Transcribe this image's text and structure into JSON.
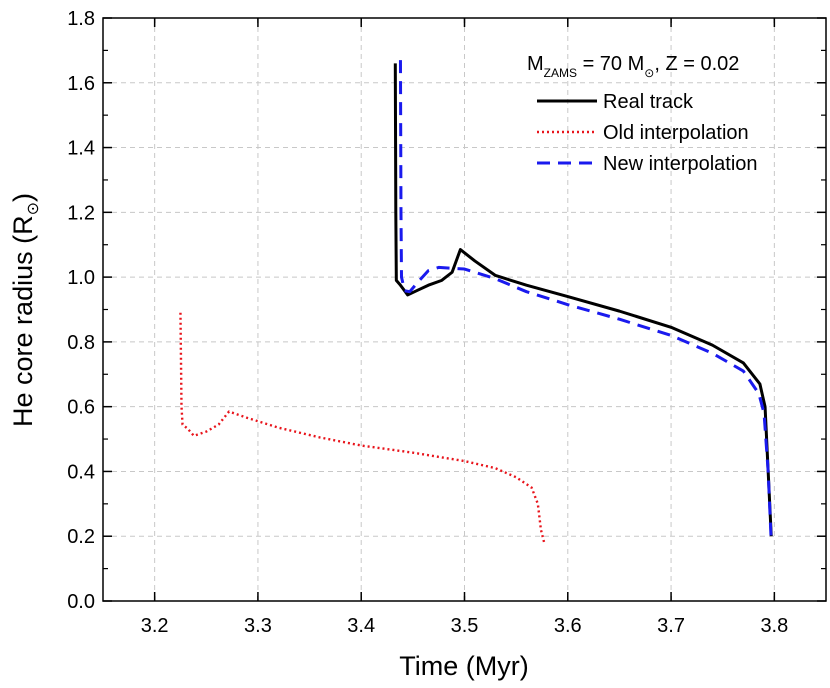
{
  "chart_data": {
    "type": "line",
    "xlabel": "Time (Myr)",
    "ylabel_main": "He core radius (R",
    "ylabel_sym": "⊙",
    "ylabel_close": ")",
    "xlim": [
      3.15,
      3.85
    ],
    "ylim": [
      0.0,
      1.8
    ],
    "x_ticks": [
      "3.2",
      "3.3",
      "3.4",
      "3.5",
      "3.6",
      "3.7",
      "3.8"
    ],
    "y_ticks": [
      "0.0",
      "0.2",
      "0.4",
      "0.6",
      "0.8",
      "1.0",
      "1.2",
      "1.4",
      "1.6",
      "1.8"
    ],
    "grid": true,
    "legend_position": "top-right",
    "legend_header": {
      "m": "M",
      "m_sub": "ZAMS",
      "eq": " = 70 M",
      "sun": "⊙",
      "rest": ", Z = 0.02"
    },
    "series": [
      {
        "name": "Real track",
        "color": "#000000",
        "style": "solid",
        "points": [
          [
            3.433,
            1.66
          ],
          [
            3.4335,
            1.2
          ],
          [
            3.434,
            0.99
          ],
          [
            3.438,
            0.975
          ],
          [
            3.441,
            0.962
          ],
          [
            3.445,
            0.945
          ],
          [
            3.455,
            0.96
          ],
          [
            3.465,
            0.975
          ],
          [
            3.478,
            0.99
          ],
          [
            3.488,
            1.015
          ],
          [
            3.496,
            1.085
          ],
          [
            3.51,
            1.05
          ],
          [
            3.53,
            1.005
          ],
          [
            3.56,
            0.975
          ],
          [
            3.6,
            0.94
          ],
          [
            3.65,
            0.895
          ],
          [
            3.7,
            0.845
          ],
          [
            3.74,
            0.79
          ],
          [
            3.77,
            0.735
          ],
          [
            3.786,
            0.67
          ],
          [
            3.791,
            0.6
          ],
          [
            3.794,
            0.4
          ],
          [
            3.797,
            0.2
          ]
        ]
      },
      {
        "name": "Old interpolation",
        "color": "#e8141b",
        "style": "dotted",
        "points": [
          [
            3.225,
            0.89
          ],
          [
            3.226,
            0.6
          ],
          [
            3.227,
            0.545
          ],
          [
            3.232,
            0.532
          ],
          [
            3.238,
            0.51
          ],
          [
            3.25,
            0.523
          ],
          [
            3.262,
            0.545
          ],
          [
            3.272,
            0.585
          ],
          [
            3.29,
            0.565
          ],
          [
            3.32,
            0.535
          ],
          [
            3.36,
            0.505
          ],
          [
            3.4,
            0.48
          ],
          [
            3.45,
            0.458
          ],
          [
            3.5,
            0.432
          ],
          [
            3.53,
            0.41
          ],
          [
            3.55,
            0.382
          ],
          [
            3.565,
            0.35
          ],
          [
            3.571,
            0.3
          ],
          [
            3.574,
            0.22
          ],
          [
            3.577,
            0.182
          ]
        ]
      },
      {
        "name": "New interpolation",
        "color": "#1a1aee",
        "style": "dashed",
        "points": [
          [
            3.438,
            1.67
          ],
          [
            3.4385,
            1.2
          ],
          [
            3.439,
            1.0
          ],
          [
            3.442,
            0.958
          ],
          [
            3.447,
            0.955
          ],
          [
            3.455,
            0.985
          ],
          [
            3.465,
            1.02
          ],
          [
            3.475,
            1.03
          ],
          [
            3.5,
            1.025
          ],
          [
            3.53,
            0.995
          ],
          [
            3.56,
            0.955
          ],
          [
            3.6,
            0.915
          ],
          [
            3.65,
            0.87
          ],
          [
            3.7,
            0.82
          ],
          [
            3.74,
            0.765
          ],
          [
            3.77,
            0.71
          ],
          [
            3.785,
            0.64
          ],
          [
            3.79,
            0.58
          ],
          [
            3.794,
            0.4
          ],
          [
            3.797,
            0.18
          ]
        ]
      }
    ]
  }
}
